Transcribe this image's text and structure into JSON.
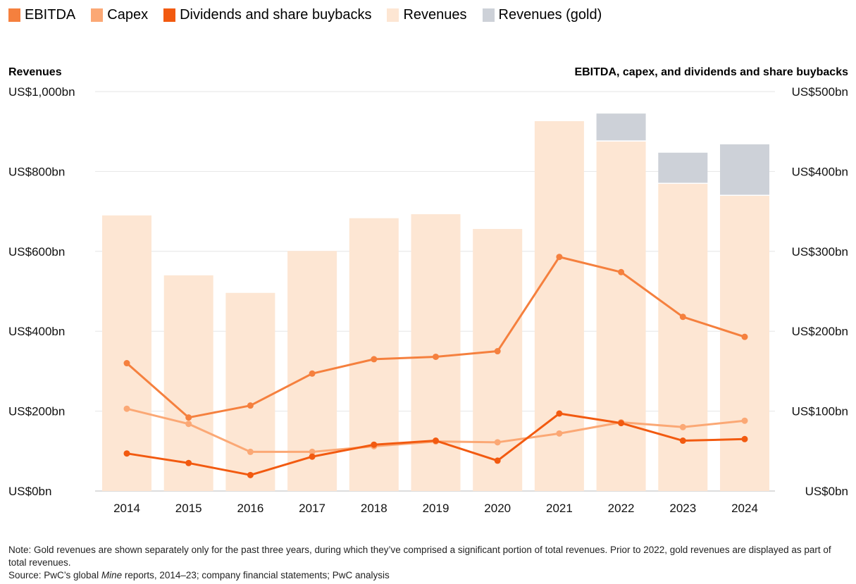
{
  "legend": [
    {
      "label": "EBITDA",
      "color": "#f5803e"
    },
    {
      "label": "Capex",
      "color": "#fba875"
    },
    {
      "label": "Dividends and share buybacks",
      "color": "#f25a10"
    },
    {
      "label": "Revenues",
      "color": "#fde6d3"
    },
    {
      "label": "Revenues (gold)",
      "color": "#cdd1d8"
    }
  ],
  "chart_data": {
    "type": "bar+line",
    "categories": [
      "2014",
      "2015",
      "2016",
      "2017",
      "2018",
      "2019",
      "2020",
      "2021",
      "2022",
      "2023",
      "2024"
    ],
    "left_axis": {
      "title": "Revenues",
      "ylim": [
        0,
        1000
      ],
      "ticks": [
        "US$0bn",
        "US$200bn",
        "US$400bn",
        "US$600bn",
        "US$800bn",
        "US$1,000bn"
      ],
      "tick_values": [
        0,
        200,
        400,
        600,
        800,
        1000
      ]
    },
    "right_axis": {
      "title": "EBITDA, capex, and dividends and share buybacks",
      "ylim": [
        0,
        500
      ],
      "ticks": [
        "US$0bn",
        "US$100bn",
        "US$200bn",
        "US$300bn",
        "US$400bn",
        "US$500bn"
      ],
      "tick_values": [
        0,
        100,
        200,
        300,
        400,
        500
      ]
    },
    "bars": [
      {
        "name": "Revenues",
        "axis": "left",
        "color": "#fde6d3",
        "values": [
          690,
          540,
          496,
          601,
          683,
          693,
          656,
          926,
          875,
          769,
          739
        ]
      },
      {
        "name": "Revenues (gold)",
        "axis": "left",
        "color": "#cdd1d8",
        "values": [
          0,
          0,
          0,
          0,
          0,
          0,
          0,
          0,
          70,
          78,
          129
        ]
      }
    ],
    "series": [
      {
        "name": "EBITDA",
        "axis": "right",
        "color": "#f5803e",
        "values": [
          160,
          92,
          107,
          147,
          165,
          168,
          175,
          293,
          274,
          218,
          193
        ]
      },
      {
        "name": "Capex",
        "axis": "right",
        "color": "#fba875",
        "values": [
          103,
          84,
          49,
          49,
          56,
          62,
          61,
          72,
          86,
          80,
          88
        ]
      },
      {
        "name": "Dividends and share buybacks",
        "axis": "right",
        "color": "#f25a10",
        "values": [
          47,
          35,
          20,
          43,
          58,
          63,
          38,
          97,
          85,
          63,
          65
        ]
      }
    ],
    "grid": true,
    "legend_position": "top-left"
  },
  "notes": {
    "note": "Note: Gold revenues are shown separately only for the past three years, during which they’ve comprised a significant portion of total revenues. Prior to 2022, gold revenues are displayed as part of total revenues.",
    "source_prefix": "Source: PwC’s global ",
    "source_italic": "Mine",
    "source_suffix": " reports, 2014–23; company financial statements; PwC analysis"
  }
}
